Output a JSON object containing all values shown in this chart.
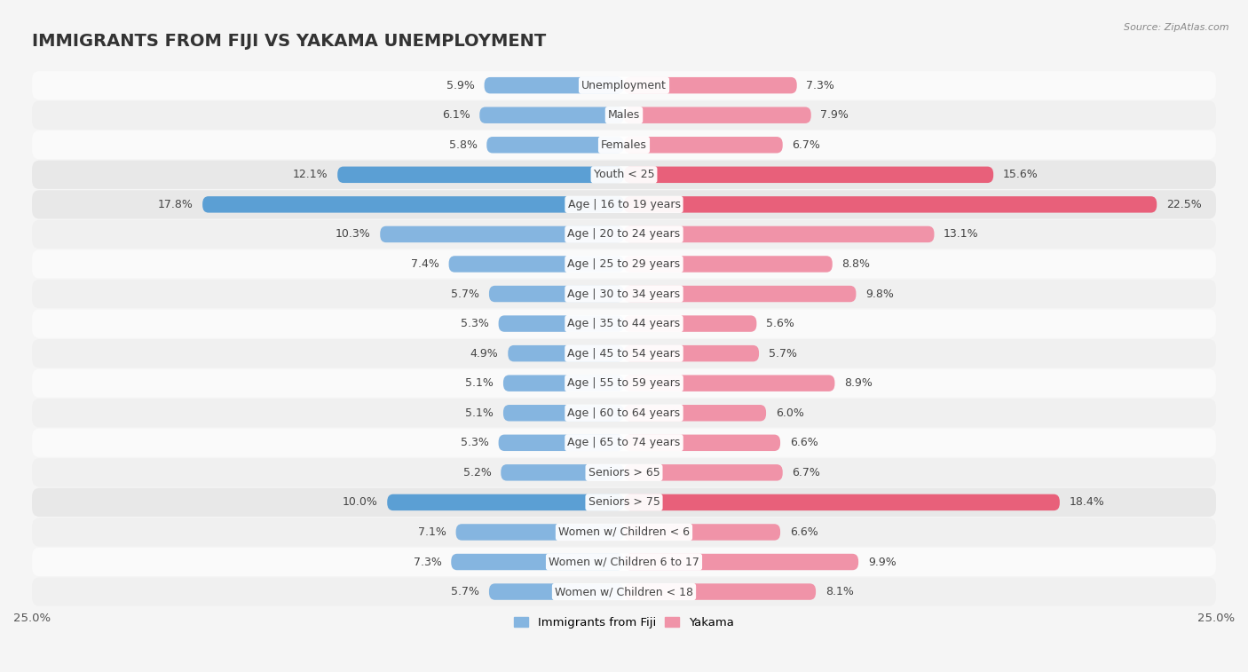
{
  "title": "IMMIGRANTS FROM FIJI VS YAKAMA UNEMPLOYMENT",
  "source": "Source: ZipAtlas.com",
  "categories": [
    "Unemployment",
    "Males",
    "Females",
    "Youth < 25",
    "Age | 16 to 19 years",
    "Age | 20 to 24 years",
    "Age | 25 to 29 years",
    "Age | 30 to 34 years",
    "Age | 35 to 44 years",
    "Age | 45 to 54 years",
    "Age | 55 to 59 years",
    "Age | 60 to 64 years",
    "Age | 65 to 74 years",
    "Seniors > 65",
    "Seniors > 75",
    "Women w/ Children < 6",
    "Women w/ Children 6 to 17",
    "Women w/ Children < 18"
  ],
  "fiji_values": [
    5.9,
    6.1,
    5.8,
    12.1,
    17.8,
    10.3,
    7.4,
    5.7,
    5.3,
    4.9,
    5.1,
    5.1,
    5.3,
    5.2,
    10.0,
    7.1,
    7.3,
    5.7
  ],
  "yakama_values": [
    7.3,
    7.9,
    6.7,
    15.6,
    22.5,
    13.1,
    8.8,
    9.8,
    5.6,
    5.7,
    8.9,
    6.0,
    6.6,
    6.7,
    18.4,
    6.6,
    9.9,
    8.1
  ],
  "fiji_color": "#85b5e0",
  "yakama_color": "#f093a8",
  "highlight_fiji_color": "#5b9fd4",
  "highlight_yakama_color": "#e8607a",
  "highlight_rows": [
    3,
    4,
    14
  ],
  "row_even_color": "#f0f0f0",
  "row_odd_color": "#fafafa",
  "row_highlight_color": "#e8e8e8",
  "bg_color": "#f5f5f5",
  "axis_limit": 25.0,
  "title_fontsize": 14,
  "value_fontsize": 9,
  "label_fontsize": 9,
  "bar_height": 0.55
}
